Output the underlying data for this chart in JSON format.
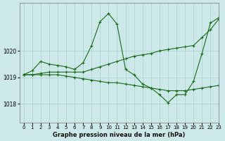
{
  "title": "Graphe pression niveau de la mer (hPa)",
  "bg_color": "#cce8e8",
  "grid_color": "#aacfcf",
  "line_color": "#1a6b1a",
  "xlim": [
    -0.5,
    23
  ],
  "ylim": [
    1017.3,
    1021.8
  ],
  "yticks": [
    1018,
    1019,
    1020
  ],
  "xticks": [
    0,
    1,
    2,
    3,
    4,
    5,
    6,
    7,
    8,
    9,
    10,
    11,
    12,
    13,
    14,
    15,
    16,
    17,
    18,
    19,
    20,
    21,
    22,
    23
  ],
  "series": [
    {
      "x": [
        0,
        1,
        2,
        3,
        4,
        5,
        6,
        7,
        8,
        9,
        10,
        11,
        12,
        13,
        14,
        15,
        16,
        17,
        18,
        19,
        20,
        21,
        22,
        23
      ],
      "y": [
        1019.1,
        1019.25,
        1019.6,
        1019.5,
        1019.45,
        1019.4,
        1019.3,
        1019.55,
        1020.2,
        1021.1,
        1021.4,
        1021.0,
        1019.3,
        1019.1,
        1018.75,
        1018.6,
        1018.35,
        1018.05,
        1018.35,
        1018.35,
        1018.85,
        1019.9,
        1021.05,
        1021.25
      ]
    },
    {
      "x": [
        0,
        1,
        2,
        3,
        4,
        5,
        6,
        7,
        8,
        9,
        10,
        11,
        12,
        13,
        14,
        15,
        16,
        17,
        18,
        19,
        20,
        21,
        22,
        23
      ],
      "y": [
        1019.1,
        1019.1,
        1019.15,
        1019.2,
        1019.2,
        1019.2,
        1019.2,
        1019.2,
        1019.3,
        1019.4,
        1019.5,
        1019.6,
        1019.7,
        1019.8,
        1019.85,
        1019.9,
        1020.0,
        1020.05,
        1020.1,
        1020.15,
        1020.2,
        1020.5,
        1020.8,
        1021.2
      ]
    },
    {
      "x": [
        0,
        1,
        2,
        3,
        4,
        5,
        6,
        7,
        8,
        9,
        10,
        11,
        12,
        13,
        14,
        15,
        16,
        17,
        18,
        19,
        20,
        21,
        22,
        23
      ],
      "y": [
        1019.1,
        1019.1,
        1019.1,
        1019.1,
        1019.1,
        1019.05,
        1019.0,
        1018.95,
        1018.9,
        1018.85,
        1018.8,
        1018.8,
        1018.75,
        1018.7,
        1018.65,
        1018.6,
        1018.55,
        1018.5,
        1018.5,
        1018.5,
        1018.55,
        1018.6,
        1018.65,
        1018.7
      ]
    }
  ]
}
